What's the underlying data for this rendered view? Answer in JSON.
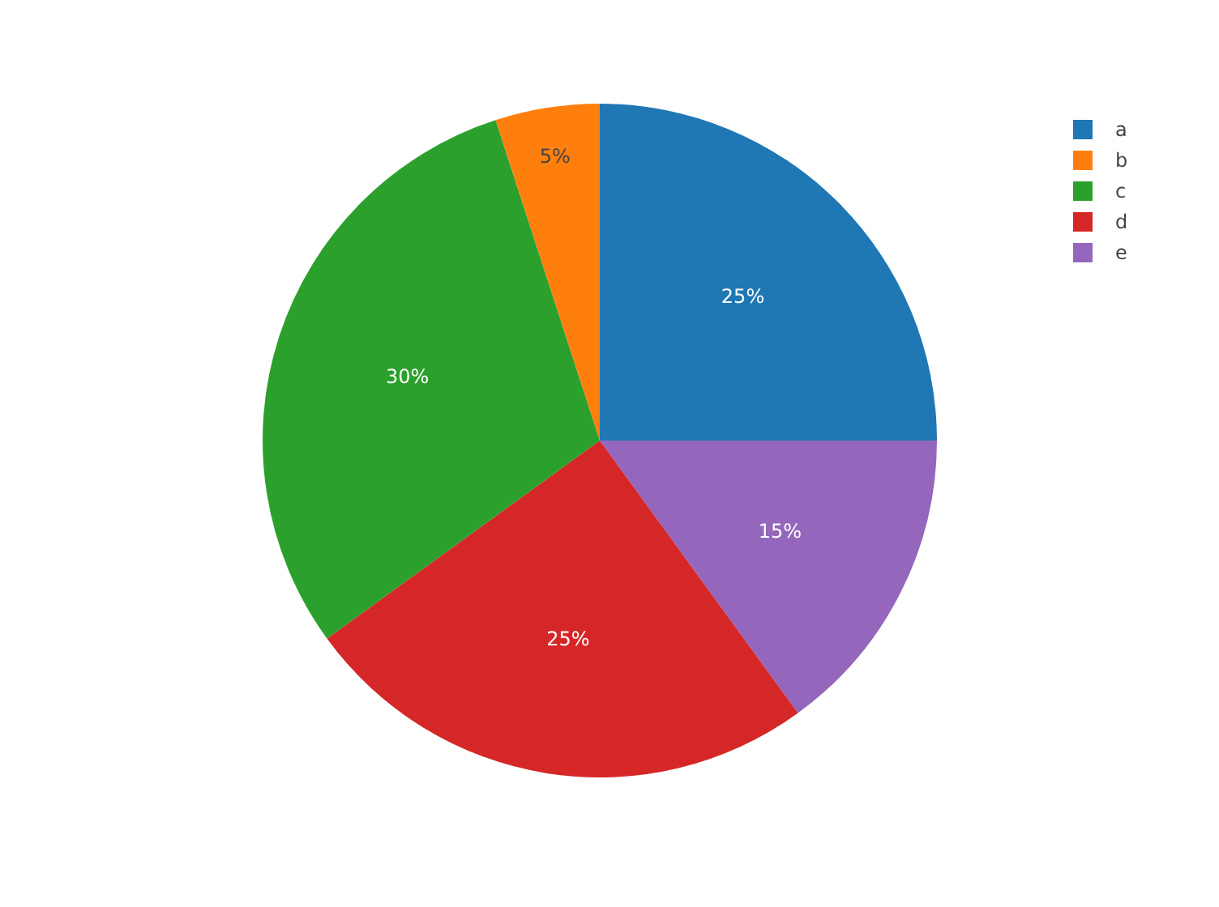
{
  "chart_data": {
    "type": "pie",
    "categories": [
      "a",
      "b",
      "c",
      "d",
      "e"
    ],
    "values": [
      25,
      5,
      30,
      25,
      15
    ],
    "colors": [
      "#1f77b4",
      "#ff7f0e",
      "#2ca02c",
      "#d62728",
      "#9467bd"
    ],
    "value_labels": [
      "25%",
      "5%",
      "30%",
      "25%",
      "15%"
    ],
    "legend": "top right"
  }
}
